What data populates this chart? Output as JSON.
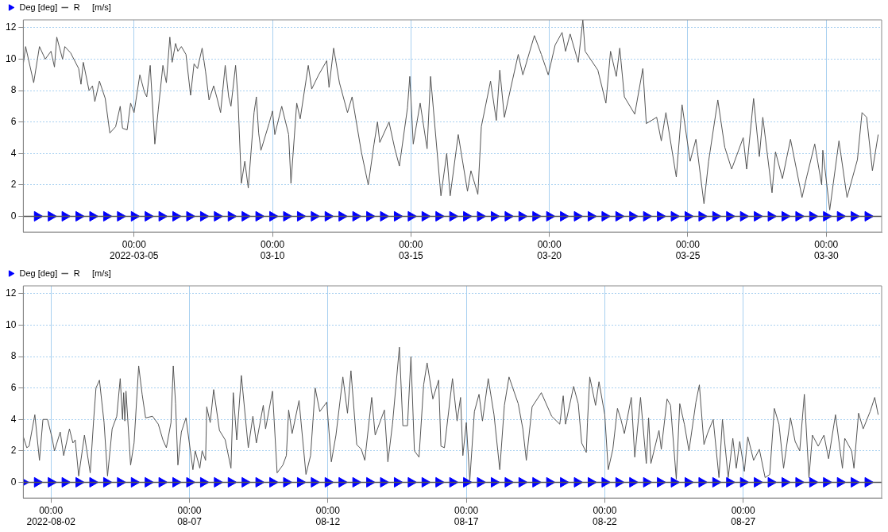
{
  "chart_data": [
    {
      "type": "line",
      "xlim": [
        "2022-03-01T00:00",
        "2022-04-01T00:00"
      ],
      "ylim": [
        -1,
        12.5
      ],
      "yticks": [
        0,
        2,
        4,
        6,
        8,
        10,
        12
      ],
      "xticks": [
        {
          "value": "2022-03-05T00:00",
          "label": "00:00\n2022-03-05"
        },
        {
          "value": "2022-03-10T00:00",
          "label": "00:00\n03-10"
        },
        {
          "value": "2022-03-15T00:00",
          "label": "00:00\n03-15"
        },
        {
          "value": "2022-03-20T00:00",
          "label": "00:00\n03-20"
        },
        {
          "value": "2022-03-25T00:00",
          "label": "00:00\n03-25"
        },
        {
          "value": "2022-03-30T00:00",
          "label": "00:00\n03-30"
        }
      ],
      "grid": true,
      "legend": "top left",
      "ref_lines": [
        {
          "axis": "y",
          "value": 0,
          "color": "#555555"
        }
      ],
      "series": [
        {
          "name": "Deg [deg]",
          "type": "scatter",
          "marker": "triangle",
          "color": "#0000ff",
          "x": [
            "2022-03-01T12:00",
            "2022-03-02T00:00",
            "2022-03-02T12:00",
            "2022-03-03T00:00",
            "2022-03-03T12:00",
            "2022-03-04T00:00",
            "2022-03-04T12:00",
            "2022-03-05T00:00",
            "2022-03-05T12:00",
            "2022-03-06T00:00",
            "2022-03-06T12:00",
            "2022-03-07T00:00",
            "2022-03-07T12:00",
            "2022-03-08T00:00",
            "2022-03-08T12:00",
            "2022-03-09T00:00",
            "2022-03-09T12:00",
            "2022-03-10T00:00",
            "2022-03-10T12:00",
            "2022-03-11T00:00",
            "2022-03-11T12:00",
            "2022-03-12T00:00",
            "2022-03-12T12:00",
            "2022-03-13T00:00",
            "2022-03-13T12:00",
            "2022-03-14T00:00",
            "2022-03-14T12:00",
            "2022-03-15T00:00",
            "2022-03-15T12:00",
            "2022-03-16T00:00",
            "2022-03-16T12:00",
            "2022-03-17T00:00",
            "2022-03-17T12:00",
            "2022-03-18T00:00",
            "2022-03-18T12:00",
            "2022-03-19T00:00",
            "2022-03-19T12:00",
            "2022-03-20T00:00",
            "2022-03-20T12:00",
            "2022-03-21T00:00",
            "2022-03-21T12:00",
            "2022-03-22T00:00",
            "2022-03-22T12:00",
            "2022-03-23T00:00",
            "2022-03-23T12:00",
            "2022-03-24T00:00",
            "2022-03-24T12:00",
            "2022-03-25T00:00",
            "2022-03-25T12:00",
            "2022-03-26T00:00",
            "2022-03-26T12:00",
            "2022-03-27T00:00",
            "2022-03-27T12:00",
            "2022-03-28T00:00",
            "2022-03-28T12:00",
            "2022-03-29T00:00",
            "2022-03-29T12:00",
            "2022-03-30T00:00",
            "2022-03-30T12:00",
            "2022-03-31T00:00",
            "2022-03-31T12:00"
          ],
          "values": [
            0,
            0,
            0,
            0,
            0,
            0,
            0,
            0,
            0,
            0,
            0,
            0,
            0,
            0,
            0,
            0,
            0,
            0,
            0,
            0,
            0,
            0,
            0,
            0,
            0,
            0,
            0,
            0,
            0,
            0,
            0,
            0,
            0,
            0,
            0,
            0,
            0,
            0,
            0,
            0,
            0,
            0,
            0,
            0,
            0,
            0,
            0,
            0,
            0,
            0,
            0,
            0,
            0,
            0,
            0,
            0,
            0,
            0,
            0,
            0,
            0
          ]
        },
        {
          "name": "R     [m/s]",
          "type": "line",
          "marker": "none",
          "line_style": "solid",
          "color": "#555555",
          "x": [
            "2022-03-01T00:00",
            "2022-03-01T02:00",
            "2022-03-01T09:00",
            "2022-03-01T14:00",
            "2022-03-01T19:00",
            "2022-03-02T00:00",
            "2022-03-02T03:00",
            "2022-03-02T05:00",
            "2022-03-02T10:00",
            "2022-03-02T12:00",
            "2022-03-02T17:00",
            "2022-03-03T00:00",
            "2022-03-03T02:00",
            "2022-03-03T04:00",
            "2022-03-03T09:00",
            "2022-03-03T12:00",
            "2022-03-03T14:00",
            "2022-03-03T18:00",
            "2022-03-03T23:00",
            "2022-03-04T03:00",
            "2022-03-04T08:00",
            "2022-03-04T12:00",
            "2022-03-04T14:00",
            "2022-03-04T18:00",
            "2022-03-04T21:00",
            "2022-03-05T00:00",
            "2022-03-05T05:00",
            "2022-03-05T09:00",
            "2022-03-05T11:00",
            "2022-03-05T14:00",
            "2022-03-05T18:00",
            "2022-03-05T21:00",
            "2022-03-06T01:00",
            "2022-03-06T04:00",
            "2022-03-06T07:00",
            "2022-03-06T09:00",
            "2022-03-06T12:00",
            "2022-03-06T14:00",
            "2022-03-06T17:00",
            "2022-03-06T21:00",
            "2022-03-07T01:00",
            "2022-03-07T04:00",
            "2022-03-07T07:00",
            "2022-03-07T11:00",
            "2022-03-07T14:00",
            "2022-03-07T17:00",
            "2022-03-07T21:00",
            "2022-03-08T00:00",
            "2022-03-08T03:00",
            "2022-03-08T07:00",
            "2022-03-08T10:00",
            "2022-03-08T12:00",
            "2022-03-08T16:00",
            "2022-03-08T18:00",
            "2022-03-08T21:00",
            "2022-03-09T00:00",
            "2022-03-09T03:00",
            "2022-03-09T08:00",
            "2022-03-09T10:00",
            "2022-03-09T12:00",
            "2022-03-09T14:00",
            "2022-03-09T21:00",
            "2022-03-10T00:00",
            "2022-03-10T02:00",
            "2022-03-10T08:00",
            "2022-03-10T14:00",
            "2022-03-10T16:00",
            "2022-03-10T21:00",
            "2022-03-11T00:00",
            "2022-03-11T07:00",
            "2022-03-11T10:00",
            "2022-03-11T16:00",
            "2022-03-11T23:00",
            "2022-03-12T01:00",
            "2022-03-12T05:00",
            "2022-03-12T10:00",
            "2022-03-12T17:00",
            "2022-03-12T21:00",
            "2022-03-13T05:00",
            "2022-03-13T11:00",
            "2022-03-13T16:00",
            "2022-03-13T19:00",
            "2022-03-13T21:00",
            "2022-03-14T05:00",
            "2022-03-14T10:00",
            "2022-03-14T14:00",
            "2022-03-14T21:00",
            "2022-03-14T23:00",
            "2022-03-15T02:00",
            "2022-03-15T08:00",
            "2022-03-15T14:00",
            "2022-03-15T17:00",
            "2022-03-16T02:00",
            "2022-03-16T07:00",
            "2022-03-16T10:00",
            "2022-03-16T17:00",
            "2022-03-17T01:00",
            "2022-03-17T04:00",
            "2022-03-17T10:00",
            "2022-03-17T13:00",
            "2022-03-17T21:00",
            "2022-03-18T02:00",
            "2022-03-18T05:00",
            "2022-03-18T09:00",
            "2022-03-18T14:00",
            "2022-03-18T21:00",
            "2022-03-19T01:00",
            "2022-03-19T11:00",
            "2022-03-19T17:00",
            "2022-03-19T23:00",
            "2022-03-20T05:00",
            "2022-03-20T11:00",
            "2022-03-20T14:00",
            "2022-03-20T18:00",
            "2022-03-21T01:00",
            "2022-03-21T05:00",
            "2022-03-21T07:00",
            "2022-03-21T18:00",
            "2022-03-22T01:00",
            "2022-03-22T05:00",
            "2022-03-22T10:00",
            "2022-03-22T13:00",
            "2022-03-22T17:00",
            "2022-03-23T02:00",
            "2022-03-23T09:00",
            "2022-03-23T12:00",
            "2022-03-23T21:00",
            "2022-03-24T01:00",
            "2022-03-24T05:00",
            "2022-03-24T14:00",
            "2022-03-24T19:00",
            "2022-03-25T02:00",
            "2022-03-25T07:00",
            "2022-03-25T14:00",
            "2022-03-25T18:00",
            "2022-03-26T02:00",
            "2022-03-26T08:00",
            "2022-03-26T14:00",
            "2022-03-27T00:00",
            "2022-03-27T03:00",
            "2022-03-27T09:00",
            "2022-03-27T14:00",
            "2022-03-27T17:00",
            "2022-03-28T01:00",
            "2022-03-28T04:00",
            "2022-03-28T10:00",
            "2022-03-28T17:00",
            "2022-03-29T03:00",
            "2022-03-29T07:00",
            "2022-03-29T14:00",
            "2022-03-29T20:00",
            "2022-03-29T21:00",
            "2022-03-30T03:00",
            "2022-03-30T11:00",
            "2022-03-30T18:00",
            "2022-03-31T03:00",
            "2022-03-31T07:00",
            "2022-03-31T11:00",
            "2022-03-31T16:00",
            "2022-03-31T21:00"
          ],
          "values": [
            9.7,
            10.8,
            8.5,
            10.8,
            10.0,
            10.5,
            9.5,
            11.4,
            10.0,
            10.8,
            10.4,
            9.4,
            8.4,
            9.8,
            8.0,
            8.3,
            7.3,
            8.6,
            7.5,
            5.3,
            5.7,
            7.0,
            5.6,
            5.5,
            7.2,
            6.6,
            9.0,
            7.9,
            7.6,
            9.6,
            4.6,
            6.8,
            9.6,
            8.5,
            11.4,
            9.8,
            11.0,
            10.5,
            10.8,
            10.3,
            7.7,
            9.7,
            9.4,
            10.7,
            9.2,
            7.4,
            8.3,
            7.5,
            6.6,
            9.6,
            7.6,
            7.0,
            9.6,
            7.6,
            2.1,
            3.5,
            1.8,
            6.6,
            7.6,
            5.3,
            4.2,
            5.9,
            6.7,
            5.2,
            7.0,
            5.2,
            2.1,
            7.2,
            6.2,
            9.6,
            8.1,
            9.0,
            9.9,
            8.2,
            10.7,
            8.5,
            6.6,
            7.6,
            4.1,
            2.0,
            4.6,
            6.0,
            4.7,
            6.0,
            4.3,
            3.2,
            6.9,
            8.9,
            4.6,
            7.2,
            4.3,
            8.9,
            1.3,
            4.0,
            1.3,
            5.2,
            1.6,
            2.9,
            1.4,
            5.7,
            8.6,
            6.1,
            9.3,
            6.3,
            8.0,
            10.3,
            9.0,
            11.5,
            10.3,
            9.0,
            10.9,
            11.7,
            10.5,
            11.6,
            9.8,
            12.5,
            10.5,
            9.3,
            7.2,
            10.5,
            8.9,
            10.7,
            7.6,
            6.5,
            9.4,
            5.9,
            6.3,
            4.8,
            6.6,
            2.5,
            7.1,
            3.5,
            4.9,
            0.8,
            3.5,
            7.4,
            4.4,
            3.0,
            5.0,
            3.0,
            7.5,
            3.8,
            6.3,
            1.5,
            4.1,
            2.4,
            4.9,
            1.2,
            2.5,
            4.6,
            2.0,
            4.2,
            0.4,
            4.8,
            1.2,
            3.6,
            6.6,
            6.3,
            2.9,
            5.2
          ]
        }
      ]
    },
    {
      "type": "line",
      "xlim": [
        "2022-08-01T00:00",
        "2022-09-01T00:00"
      ],
      "ylim": [
        -1,
        12.5
      ],
      "yticks": [
        0,
        2,
        4,
        6,
        8,
        10,
        12
      ],
      "xticks": [
        {
          "value": "2022-08-02T00:00",
          "label": "00:00\n2022-08-02"
        },
        {
          "value": "2022-08-07T00:00",
          "label": "00:00\n08-07"
        },
        {
          "value": "2022-08-12T00:00",
          "label": "00:00\n08-12"
        },
        {
          "value": "2022-08-17T00:00",
          "label": "00:00\n08-17"
        },
        {
          "value": "2022-08-22T00:00",
          "label": "00:00\n08-22"
        },
        {
          "value": "2022-08-27T00:00",
          "label": "00:00\n08-27"
        }
      ],
      "grid": true,
      "legend": "top left",
      "ref_lines": [
        {
          "axis": "y",
          "value": 0,
          "color": "#555555"
        }
      ],
      "series": [
        {
          "name": "Deg [deg]",
          "type": "scatter",
          "marker": "triangle",
          "color": "#0000ff",
          "x": [
            "2022-08-01T00:00",
            "2022-08-01T12:00",
            "2022-08-02T00:00",
            "2022-08-02T12:00",
            "2022-08-03T00:00",
            "2022-08-03T12:00",
            "2022-08-04T00:00",
            "2022-08-04T12:00",
            "2022-08-05T00:00",
            "2022-08-05T12:00",
            "2022-08-06T00:00",
            "2022-08-06T12:00",
            "2022-08-07T00:00",
            "2022-08-07T12:00",
            "2022-08-08T00:00",
            "2022-08-08T12:00",
            "2022-08-09T00:00",
            "2022-08-09T12:00",
            "2022-08-10T00:00",
            "2022-08-10T12:00",
            "2022-08-11T00:00",
            "2022-08-11T12:00",
            "2022-08-12T00:00",
            "2022-08-12T12:00",
            "2022-08-13T00:00",
            "2022-08-13T12:00",
            "2022-08-14T00:00",
            "2022-08-14T12:00",
            "2022-08-15T00:00",
            "2022-08-15T12:00",
            "2022-08-16T00:00",
            "2022-08-16T12:00",
            "2022-08-17T00:00",
            "2022-08-17T12:00",
            "2022-08-18T00:00",
            "2022-08-18T12:00",
            "2022-08-19T00:00",
            "2022-08-19T12:00",
            "2022-08-20T00:00",
            "2022-08-20T12:00",
            "2022-08-21T00:00",
            "2022-08-21T12:00",
            "2022-08-22T00:00",
            "2022-08-22T12:00",
            "2022-08-23T00:00",
            "2022-08-23T12:00",
            "2022-08-24T00:00",
            "2022-08-24T12:00",
            "2022-08-25T00:00",
            "2022-08-25T12:00",
            "2022-08-26T00:00",
            "2022-08-26T12:00",
            "2022-08-27T00:00",
            "2022-08-27T12:00",
            "2022-08-28T00:00",
            "2022-08-28T12:00",
            "2022-08-29T00:00",
            "2022-08-29T12:00",
            "2022-08-30T00:00",
            "2022-08-30T12:00",
            "2022-08-31T00:00",
            "2022-08-31T12:00"
          ],
          "values": [
            0,
            0,
            0,
            0,
            0,
            0,
            0,
            0,
            0,
            0,
            0,
            0,
            0,
            0,
            0,
            0,
            0,
            0,
            0,
            0,
            0,
            0,
            0,
            0,
            0,
            0,
            0,
            0,
            0,
            0,
            0,
            0,
            0,
            0,
            0,
            0,
            0,
            0,
            0,
            0,
            0,
            0,
            0,
            0,
            0,
            0,
            0,
            0,
            0,
            0,
            0,
            0,
            0,
            0,
            0,
            0,
            0,
            0,
            0,
            0,
            0,
            0
          ]
        },
        {
          "name": "R     [m/s]",
          "type": "line",
          "marker": "none",
          "line_style": "solid",
          "color": "#555555",
          "x": [
            "2022-08-01T00:00",
            "2022-08-01T03:00",
            "2022-08-01T05:00",
            "2022-08-01T10:00",
            "2022-08-01T14:00",
            "2022-08-01T17:00",
            "2022-08-01T21:00",
            "2022-08-02T01:00",
            "2022-08-02T03:00",
            "2022-08-02T08:00",
            "2022-08-02T11:00",
            "2022-08-02T16:00",
            "2022-08-02T19:00",
            "2022-08-02T21:00",
            "2022-08-03T00:00",
            "2022-08-03T05:00",
            "2022-08-03T10:00",
            "2022-08-03T13:00",
            "2022-08-03T15:00",
            "2022-08-03T18:00",
            "2022-08-03T22:00",
            "2022-08-04T01:00",
            "2022-08-04T05:00",
            "2022-08-04T09:00",
            "2022-08-04T12:00",
            "2022-08-04T14:00",
            "2022-08-04T15:00",
            "2022-08-04T16:00",
            "2022-08-04T17:00",
            "2022-08-04T21:00",
            "2022-08-05T00:00",
            "2022-08-05T04:00",
            "2022-08-05T07:00",
            "2022-08-05T10:00",
            "2022-08-05T16:00",
            "2022-08-05T21:00",
            "2022-08-06T01:00",
            "2022-08-06T04:00",
            "2022-08-06T08:00",
            "2022-08-06T10:00",
            "2022-08-06T12:00",
            "2022-08-06T14:00",
            "2022-08-06T17:00",
            "2022-08-06T21:00",
            "2022-08-07T03:00",
            "2022-08-07T05:00",
            "2022-08-07T09:00",
            "2022-08-07T11:00",
            "2022-08-07T14:00",
            "2022-08-07T15:00",
            "2022-08-07T18:00",
            "2022-08-07T21:00",
            "2022-08-08T02:00",
            "2022-08-08T07:00",
            "2022-08-08T12:00",
            "2022-08-08T14:00",
            "2022-08-08T17:00",
            "2022-08-08T21:00",
            "2022-08-09T03:00",
            "2022-08-09T07:00",
            "2022-08-09T10:00",
            "2022-08-09T16:00",
            "2022-08-09T18:00",
            "2022-08-10T00:00",
            "2022-08-10T04:00",
            "2022-08-10T09:00",
            "2022-08-10T12:00",
            "2022-08-10T14:00",
            "2022-08-10T17:00",
            "2022-08-10T23:00",
            "2022-08-11T05:00",
            "2022-08-11T09:00",
            "2022-08-11T13:00",
            "2022-08-11T17:00",
            "2022-08-11T23:00",
            "2022-08-12T03:00",
            "2022-08-12T07:00",
            "2022-08-12T13:00",
            "2022-08-12T17:00",
            "2022-08-12T20:00",
            "2022-08-13T01:00",
            "2022-08-13T05:00",
            "2022-08-13T08:00",
            "2022-08-13T14:00",
            "2022-08-13T17:00",
            "2022-08-14T01:00",
            "2022-08-14T04:00",
            "2022-08-14T08:00",
            "2022-08-14T14:00",
            "2022-08-14T17:00",
            "2022-08-14T21:00",
            "2022-08-15T00:00",
            "2022-08-15T03:00",
            "2022-08-15T07:00",
            "2022-08-15T11:00",
            "2022-08-15T14:00",
            "2022-08-15T19:00",
            "2022-08-16T00:00",
            "2022-08-16T02:00",
            "2022-08-16T05:00",
            "2022-08-16T12:00",
            "2022-08-16T16:00",
            "2022-08-16T19:00",
            "2022-08-16T21:00",
            "2022-08-17T00:00",
            "2022-08-17T03:00",
            "2022-08-17T07:00",
            "2022-08-17T11:00",
            "2022-08-17T14:00",
            "2022-08-17T19:00",
            "2022-08-18T00:00",
            "2022-08-18T05:00",
            "2022-08-18T09:00",
            "2022-08-18T13:00",
            "2022-08-18T21:00",
            "2022-08-19T01:00",
            "2022-08-19T04:00",
            "2022-08-19T09:00",
            "2022-08-19T17:00",
            "2022-08-20T02:00",
            "2022-08-20T09:00",
            "2022-08-20T12:00",
            "2022-08-20T14:00",
            "2022-08-20T21:00",
            "2022-08-21T01:00",
            "2022-08-21T04:00",
            "2022-08-21T08:00",
            "2022-08-21T09:00",
            "2022-08-21T11:00",
            "2022-08-21T16:00",
            "2022-08-21T19:00",
            "2022-08-22T00:00",
            "2022-08-22T03:00",
            "2022-08-22T07:00",
            "2022-08-22T11:00",
            "2022-08-22T14:00",
            "2022-08-22T17:00",
            "2022-08-22T23:00",
            "2022-08-23T02:00",
            "2022-08-23T07:00",
            "2022-08-23T12:00",
            "2022-08-23T14:00",
            "2022-08-23T16:00",
            "2022-08-23T23:00",
            "2022-08-24T01:00",
            "2022-08-24T06:00",
            "2022-08-24T09:00",
            "2022-08-24T14:00",
            "2022-08-24T17:00",
            "2022-08-24T21:00",
            "2022-08-25T01:00",
            "2022-08-25T07:00",
            "2022-08-25T10:00",
            "2022-08-25T14:00",
            "2022-08-25T17:00",
            "2022-08-25T22:00",
            "2022-08-26T03:00",
            "2022-08-26T06:00",
            "2022-08-26T11:00",
            "2022-08-26T15:00",
            "2022-08-26T18:00",
            "2022-08-26T21:00",
            "2022-08-27T01:00",
            "2022-08-27T04:00",
            "2022-08-27T09:00",
            "2022-08-27T14:00",
            "2022-08-27T19:00",
            "2022-08-27T23:00",
            "2022-08-28T03:00",
            "2022-08-28T07:00",
            "2022-08-28T11:00",
            "2022-08-28T17:00",
            "2022-08-28T21:00",
            "2022-08-29T01:00",
            "2022-08-29T05:00",
            "2022-08-29T09:00",
            "2022-08-29T12:00",
            "2022-08-29T17:00",
            "2022-08-29T22:00",
            "2022-08-30T02:00",
            "2022-08-30T08:00",
            "2022-08-30T14:00",
            "2022-08-30T16:00",
            "2022-08-30T22:00",
            "2022-08-31T00:00",
            "2022-08-31T04:00",
            "2022-08-31T08:00",
            "2022-08-31T14:00",
            "2022-08-31T18:00",
            "2022-08-31T21:00"
          ],
          "values": [
            2.9,
            2.2,
            2.3,
            4.3,
            1.4,
            4.0,
            4.0,
            2.8,
            2.0,
            3.2,
            1.7,
            3.4,
            2.5,
            2.7,
            0.4,
            3.0,
            0.6,
            4.0,
            6.0,
            6.5,
            3.8,
            0.4,
            3.4,
            4.2,
            6.6,
            4.0,
            5.7,
            3.9,
            5.8,
            1.1,
            2.5,
            7.4,
            5.6,
            4.1,
            4.2,
            3.7,
            2.7,
            2.2,
            3.8,
            7.4,
            5.0,
            1.1,
            3.2,
            4.1,
            0.8,
            2.0,
            0.9,
            2.0,
            1.4,
            4.8,
            3.8,
            5.9,
            3.3,
            2.7,
            0.9,
            5.7,
            2.7,
            6.8,
            2.2,
            4.2,
            2.5,
            4.9,
            3.4,
            5.8,
            0.6,
            1.1,
            1.7,
            4.6,
            3.1,
            5.2,
            0.5,
            1.7,
            6.0,
            4.5,
            5.1,
            1.3,
            3.0,
            6.7,
            4.4,
            7.1,
            2.4,
            2.1,
            1.4,
            5.4,
            3.0,
            4.6,
            1.3,
            3.7,
            8.6,
            3.6,
            3.6,
            8.0,
            2.0,
            1.6,
            6.2,
            7.6,
            5.3,
            6.5,
            2.3,
            2.2,
            6.6,
            3.9,
            5.4,
            1.7,
            3.8,
            0.1,
            4.5,
            5.6,
            3.9,
            6.6,
            4.3,
            0.8,
            4.9,
            6.7,
            5.0,
            3.4,
            1.4,
            4.8,
            5.7,
            4.2,
            3.7,
            5.5,
            3.7,
            6.1,
            5.0,
            2.5,
            1.9,
            3.8,
            6.7,
            4.9,
            6.4,
            4.3,
            0.8,
            2.1,
            4.7,
            4.0,
            3.1,
            5.4,
            1.6,
            5.4,
            1.2,
            4.1,
            1.2,
            3.3,
            2.1,
            5.3,
            4.9,
            0.2,
            5.0,
            3.7,
            2.0,
            5.1,
            6.2,
            2.4,
            3.1,
            4.0,
            0.3,
            4.0,
            0.3,
            2.8,
            0.9,
            2.6,
            0.7,
            2.9,
            1.4,
            2.1,
            0.3,
            0.5,
            4.7,
            3.7,
            0.9,
            4.1,
            2.6,
            2.0,
            5.6,
            0.3,
            3.0,
            2.3,
            3.0,
            1.5,
            4.3,
            0.9,
            2.8,
            2.0,
            0.9,
            4.4,
            3.4,
            4.5,
            5.4,
            4.3
          ]
        }
      ]
    }
  ]
}
